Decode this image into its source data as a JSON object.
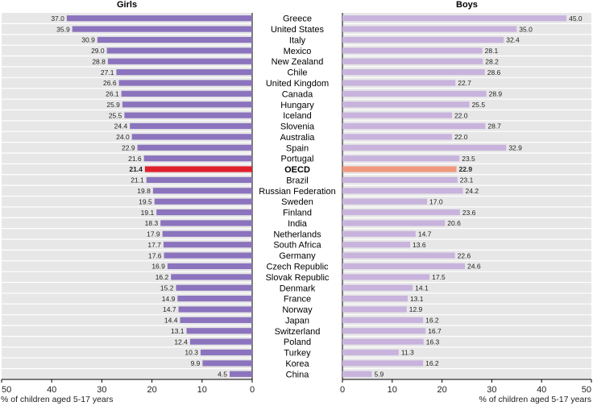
{
  "chart_data": {
    "type": "bar",
    "orientation": "horizontal",
    "panels": [
      {
        "key": "girls",
        "title": "Girls",
        "side": "left",
        "xlabel": "% of children aged 5-17 years",
        "xlim": [
          0,
          50
        ],
        "ticks": [
          50,
          40,
          30,
          20,
          10,
          0
        ]
      },
      {
        "key": "boys",
        "title": "Boys",
        "side": "right",
        "xlabel": "% of children aged 5-17 years",
        "xlim": [
          0,
          50
        ],
        "ticks": [
          0,
          10,
          20,
          30,
          40,
          50
        ]
      }
    ],
    "categories": [
      "Greece",
      "United States",
      "Italy",
      "Mexico",
      "New Zealand",
      "Chile",
      "United Kingdom",
      "Canada",
      "Hungary",
      "Iceland",
      "Slovenia",
      "Australia",
      "Spain",
      "Portugal",
      "OECD",
      "Brazil",
      "Russian Federation",
      "Sweden",
      "Finland",
      "India",
      "Netherlands",
      "South Africa",
      "Germany",
      "Czech Republic",
      "Slovak Republic",
      "Denmark",
      "France",
      "Norway",
      "Japan",
      "Switzerland",
      "Poland",
      "Turkey",
      "Korea",
      "China"
    ],
    "highlight_category": "OECD",
    "series": [
      {
        "name": "Girls",
        "color": "#8b74bd",
        "highlight_color": "#e0202c",
        "values": [
          "37.0",
          "35.9",
          "30.9",
          "29.0",
          "28.8",
          "27.1",
          "26.6",
          "26.1",
          "25.9",
          "25.5",
          "24.4",
          "24.0",
          "22.9",
          "21.6",
          "21.4",
          "21.1",
          "19.8",
          "19.5",
          "19.1",
          "18.3",
          "17.9",
          "17.7",
          "17.6",
          "16.9",
          "16.2",
          "15.2",
          "14.9",
          "14.7",
          "14.4",
          "13.1",
          "12.4",
          "10.3",
          "9.9",
          "4.5"
        ]
      },
      {
        "name": "Boys",
        "color": "#c8b3dd",
        "highlight_color": "#f0997e",
        "values": [
          "45.0",
          "35.0",
          "32.4",
          "28.1",
          "28.2",
          "28.6",
          "22.7",
          "28.9",
          "25.5",
          "22.0",
          "28.7",
          "22.0",
          "32.9",
          "23.5",
          "22.9",
          "23.1",
          "24.2",
          "17.0",
          "23.6",
          "20.6",
          "14.7",
          "13.6",
          "22.6",
          "24.6",
          "17.5",
          "14.1",
          "13.1",
          "12.9",
          "16.2",
          "16.7",
          "16.3",
          "11.3",
          "16.2",
          "5.9"
        ]
      }
    ],
    "grid": true,
    "legend": "none"
  }
}
